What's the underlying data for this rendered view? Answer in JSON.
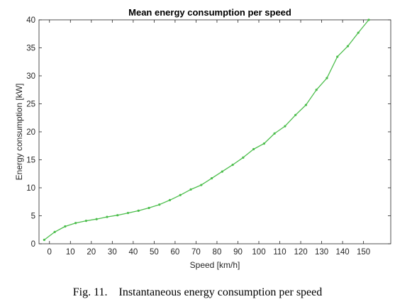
{
  "chart_data": {
    "type": "line",
    "title": "Mean energy consumption per speed",
    "xlabel": "Speed [km/h]",
    "ylabel": "Energy consumption [kW]",
    "xlim": [
      -5,
      163
    ],
    "ylim": [
      0,
      40
    ],
    "xticks": [
      "0",
      "10",
      "20",
      "30",
      "40",
      "50",
      "60",
      "70",
      "80",
      "90",
      "100",
      "110",
      "120",
      "130",
      "140",
      "150"
    ],
    "yticks": [
      "0",
      "5",
      "10",
      "15",
      "20",
      "25",
      "30",
      "35",
      "40"
    ],
    "grid": false,
    "line_color": "#4dbe4d",
    "series": [
      {
        "x": [
          -2.5,
          2.5,
          7.5,
          12.5,
          17.5,
          22.5,
          27.5,
          32.5,
          37.5,
          42.5,
          47.5,
          52.5,
          57.5,
          62.5,
          67.5,
          72.5,
          77.5,
          82.5,
          87.5,
          92.5,
          97.5,
          102.5,
          107.5,
          112.5,
          117.5,
          122.5,
          127.5,
          132.5,
          137.5,
          142.5,
          147.5,
          152.5
        ],
        "y": [
          0.7,
          2.1,
          3.1,
          3.7,
          4.1,
          4.4,
          4.8,
          5.1,
          5.5,
          5.9,
          6.4,
          7.0,
          7.8,
          8.7,
          9.7,
          10.5,
          11.7,
          12.9,
          14.1,
          15.4,
          16.9,
          17.9,
          19.7,
          21.0,
          23.0,
          24.8,
          27.5,
          29.6,
          33.4,
          35.3,
          37.7,
          40.0
        ]
      }
    ]
  },
  "caption": {
    "text": "Fig. 11.    Instantaneous energy consumption per speed"
  }
}
